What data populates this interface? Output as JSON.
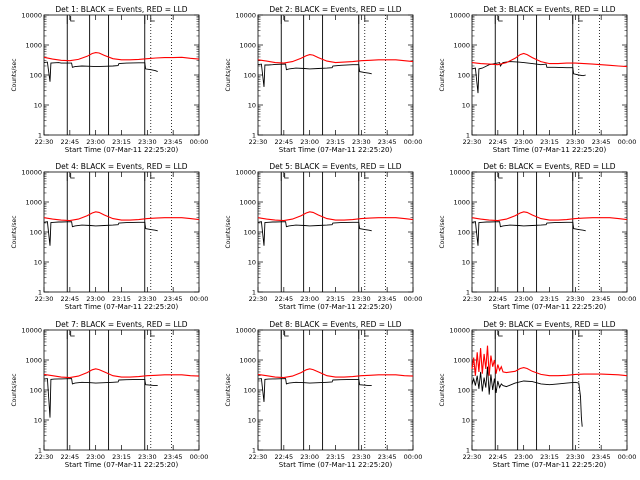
{
  "figure": {
    "xlabel": "Start Time (07-Mar-11 22:25:20)",
    "ylabel": "Counts/sec",
    "x_tick_labels": [
      "22:30",
      "22:45",
      "23:00",
      "23:15",
      "23:30",
      "23:45",
      "00:00"
    ],
    "y_tick_labels": [
      "1",
      "10",
      "100",
      "1000",
      "10000"
    ]
  },
  "chart_data": [
    {
      "type": "line",
      "title": "Det 1: BLACK = Events, RED = LLD",
      "x_unit": "minutes after 22:30",
      "y_scale": "log",
      "ylim": [
        1,
        10000
      ],
      "xlim": [
        0,
        90
      ],
      "series": [
        {
          "name": "Events",
          "color": "#000000",
          "x": [
            0,
            2,
            3.5,
            4,
            6,
            8.5,
            10,
            16,
            16.5,
            18,
            22,
            27,
            30,
            35,
            40,
            43,
            43.5,
            48,
            55,
            58.5,
            59,
            62,
            64.5,
            66
          ],
          "y": [
            260,
            270,
            60,
            250,
            255,
            260,
            250,
            250,
            180,
            190,
            200,
            195,
            190,
            195,
            200,
            205,
            240,
            250,
            255,
            255,
            160,
            150,
            140,
            130
          ]
        },
        {
          "name": "LLD",
          "color": "#ff0000",
          "x": [
            0,
            5,
            10,
            15,
            20,
            25,
            28,
            30,
            32,
            35,
            40,
            45,
            50,
            55,
            60,
            65,
            70,
            75,
            80,
            85,
            90
          ],
          "y": [
            390,
            340,
            310,
            300,
            330,
            420,
            520,
            560,
            540,
            450,
            350,
            320,
            320,
            330,
            350,
            370,
            380,
            380,
            390,
            360,
            340
          ]
        }
      ]
    },
    {
      "type": "line",
      "title": "Det 2: BLACK = Events, RED = LLD",
      "x_unit": "minutes after 22:30",
      "y_scale": "log",
      "ylim": [
        1,
        10000
      ],
      "xlim": [
        0,
        90
      ],
      "series": [
        {
          "name": "Events",
          "color": "#000000",
          "x": [
            0,
            2,
            3.5,
            4,
            6,
            8.5,
            10,
            16,
            16.5,
            18,
            22,
            27,
            30,
            35,
            40,
            43,
            43.5,
            48,
            55,
            58.5,
            59,
            62,
            64.5,
            66
          ],
          "y": [
            220,
            230,
            40,
            215,
            215,
            220,
            225,
            230,
            150,
            160,
            170,
            165,
            160,
            165,
            170,
            175,
            200,
            210,
            220,
            220,
            130,
            120,
            115,
            110
          ]
        },
        {
          "name": "LLD",
          "color": "#ff0000",
          "x": [
            0,
            5,
            10,
            15,
            20,
            25,
            28,
            30,
            32,
            35,
            40,
            45,
            50,
            55,
            60,
            65,
            70,
            75,
            80,
            85,
            90
          ],
          "y": [
            320,
            290,
            260,
            250,
            280,
            360,
            440,
            480,
            460,
            380,
            290,
            260,
            270,
            280,
            300,
            310,
            320,
            320,
            320,
            300,
            280
          ]
        }
      ]
    },
    {
      "type": "line",
      "title": "Det 3: BLACK = Events, RED = LLD",
      "x_unit": "minutes after 22:30",
      "y_scale": "log",
      "ylim": [
        1,
        10000
      ],
      "xlim": [
        0,
        90
      ],
      "series": [
        {
          "name": "Events",
          "color": "#000000",
          "x": [
            0,
            2,
            3.5,
            4,
            6,
            8.5,
            10,
            16,
            16.5,
            18,
            22,
            27,
            30,
            35,
            40,
            43,
            43.5,
            48,
            55,
            58.5,
            59,
            62,
            64.5,
            66
          ],
          "y": [
            160,
            170,
            25,
            160,
            170,
            200,
            220,
            260,
            200,
            260,
            280,
            270,
            260,
            240,
            220,
            230,
            180,
            180,
            175,
            175,
            110,
            100,
            95,
            100
          ]
        },
        {
          "name": "LLD",
          "color": "#ff0000",
          "x": [
            0,
            5,
            10,
            15,
            20,
            25,
            28,
            30,
            32,
            35,
            40,
            45,
            50,
            55,
            60,
            65,
            70,
            75,
            80,
            85,
            90
          ],
          "y": [
            260,
            240,
            230,
            220,
            260,
            360,
            480,
            520,
            480,
            380,
            280,
            240,
            240,
            250,
            250,
            240,
            230,
            220,
            210,
            200,
            190
          ]
        }
      ]
    },
    {
      "type": "line",
      "title": "Det 4: BLACK = Events, RED = LLD",
      "x_unit": "minutes after 22:30",
      "y_scale": "log",
      "ylim": [
        1,
        10000
      ],
      "xlim": [
        0,
        90
      ],
      "series": [
        {
          "name": "Events",
          "color": "#000000",
          "x": [
            0,
            2,
            3.5,
            4,
            6,
            8.5,
            10,
            16,
            16.5,
            18,
            22,
            27,
            30,
            35,
            40,
            43,
            43.5,
            48,
            55,
            58.5,
            59,
            62,
            64.5,
            66
          ],
          "y": [
            210,
            220,
            35,
            205,
            210,
            215,
            215,
            220,
            150,
            160,
            170,
            165,
            160,
            165,
            170,
            175,
            200,
            205,
            210,
            210,
            130,
            120,
            115,
            110
          ]
        },
        {
          "name": "LLD",
          "color": "#ff0000",
          "x": [
            0,
            5,
            10,
            15,
            20,
            25,
            28,
            30,
            32,
            35,
            40,
            45,
            50,
            55,
            60,
            65,
            70,
            75,
            80,
            85,
            90
          ],
          "y": [
            300,
            270,
            250,
            240,
            270,
            350,
            430,
            470,
            450,
            370,
            280,
            250,
            250,
            260,
            280,
            290,
            300,
            300,
            300,
            280,
            260
          ]
        }
      ]
    },
    {
      "type": "line",
      "title": "Det 5: BLACK = Events, RED = LLD",
      "x_unit": "minutes after 22:30",
      "y_scale": "log",
      "ylim": [
        1,
        10000
      ],
      "xlim": [
        0,
        90
      ],
      "series": [
        {
          "name": "Events",
          "color": "#000000",
          "x": [
            0,
            2,
            3.5,
            4,
            6,
            8.5,
            10,
            16,
            16.5,
            18,
            22,
            27,
            30,
            35,
            40,
            43,
            43.5,
            48,
            55,
            58.5,
            59,
            62,
            64.5,
            66
          ],
          "y": [
            210,
            220,
            35,
            205,
            210,
            215,
            215,
            220,
            150,
            160,
            170,
            165,
            160,
            165,
            170,
            175,
            200,
            205,
            210,
            210,
            130,
            120,
            115,
            110
          ]
        },
        {
          "name": "LLD",
          "color": "#ff0000",
          "x": [
            0,
            5,
            10,
            15,
            20,
            25,
            28,
            30,
            32,
            35,
            40,
            45,
            50,
            55,
            60,
            65,
            70,
            75,
            80,
            85,
            90
          ],
          "y": [
            300,
            270,
            250,
            240,
            270,
            350,
            430,
            470,
            450,
            370,
            280,
            250,
            250,
            260,
            280,
            290,
            300,
            300,
            300,
            280,
            260
          ]
        }
      ]
    },
    {
      "type": "line",
      "title": "Det 6: BLACK = Events, RED = LLD",
      "x_unit": "minutes after 22:30",
      "y_scale": "log",
      "ylim": [
        1,
        10000
      ],
      "xlim": [
        0,
        90
      ],
      "series": [
        {
          "name": "Events",
          "color": "#000000",
          "x": [
            0,
            2,
            3.5,
            4,
            6,
            8.5,
            10,
            16,
            16.5,
            18,
            22,
            27,
            30,
            35,
            40,
            43,
            43.5,
            48,
            55,
            58.5,
            59,
            62,
            64.5,
            66
          ],
          "y": [
            210,
            220,
            35,
            205,
            210,
            215,
            215,
            220,
            150,
            160,
            170,
            165,
            160,
            165,
            170,
            175,
            200,
            205,
            210,
            210,
            130,
            120,
            115,
            110
          ]
        },
        {
          "name": "LLD",
          "color": "#ff0000",
          "x": [
            0,
            5,
            10,
            15,
            20,
            25,
            28,
            30,
            32,
            35,
            40,
            45,
            50,
            55,
            60,
            65,
            70,
            75,
            80,
            85,
            90
          ],
          "y": [
            300,
            270,
            250,
            240,
            270,
            350,
            430,
            470,
            450,
            370,
            280,
            250,
            250,
            260,
            280,
            290,
            300,
            300,
            300,
            280,
            260
          ]
        }
      ]
    },
    {
      "type": "line",
      "title": "Det 7: BLACK = Events, RED = LLD",
      "x_unit": "minutes after 22:30",
      "y_scale": "log",
      "ylim": [
        1,
        10000
      ],
      "xlim": [
        0,
        90
      ],
      "series": [
        {
          "name": "Events",
          "color": "#000000",
          "x": [
            0,
            2,
            3.5,
            4,
            6,
            8.5,
            10,
            16,
            16.5,
            18,
            22,
            27,
            30,
            35,
            40,
            43,
            43.5,
            48,
            55,
            58.5,
            59,
            62,
            64.5,
            66
          ],
          "y": [
            230,
            240,
            12,
            225,
            230,
            235,
            235,
            240,
            160,
            170,
            180,
            175,
            170,
            175,
            180,
            185,
            215,
            220,
            225,
            225,
            150,
            145,
            140,
            140
          ]
        },
        {
          "name": "LLD",
          "color": "#ff0000",
          "x": [
            0,
            5,
            10,
            15,
            20,
            25,
            28,
            30,
            32,
            35,
            40,
            45,
            50,
            55,
            60,
            65,
            70,
            75,
            80,
            85,
            90
          ],
          "y": [
            330,
            300,
            270,
            260,
            290,
            380,
            470,
            510,
            480,
            400,
            300,
            270,
            270,
            280,
            300,
            310,
            320,
            320,
            320,
            300,
            290
          ]
        }
      ]
    },
    {
      "type": "line",
      "title": "Det 8: BLACK = Events, RED = LLD",
      "x_unit": "minutes after 22:30",
      "y_scale": "log",
      "ylim": [
        1,
        10000
      ],
      "xlim": [
        0,
        90
      ],
      "series": [
        {
          "name": "Events",
          "color": "#000000",
          "x": [
            0,
            2,
            3.5,
            4,
            6,
            8.5,
            10,
            16,
            16.5,
            18,
            22,
            27,
            30,
            35,
            40,
            43,
            43.5,
            48,
            55,
            58.5,
            59,
            62,
            64.5,
            66
          ],
          "y": [
            230,
            240,
            40,
            225,
            230,
            235,
            235,
            240,
            160,
            170,
            180,
            175,
            170,
            175,
            180,
            185,
            215,
            220,
            225,
            225,
            150,
            145,
            140,
            140
          ]
        },
        {
          "name": "LLD",
          "color": "#ff0000",
          "x": [
            0,
            5,
            10,
            15,
            20,
            25,
            28,
            30,
            32,
            35,
            40,
            45,
            50,
            55,
            60,
            65,
            70,
            75,
            80,
            85,
            90
          ],
          "y": [
            330,
            300,
            270,
            260,
            290,
            380,
            470,
            510,
            480,
            400,
            300,
            270,
            270,
            280,
            300,
            310,
            320,
            320,
            320,
            300,
            290
          ]
        }
      ]
    },
    {
      "type": "line",
      "title": "Det 9: BLACK = Events, RED = LLD",
      "x_unit": "minutes after 22:30",
      "y_scale": "log",
      "ylim": [
        1,
        10000
      ],
      "xlim": [
        0,
        90
      ],
      "series": [
        {
          "name": "Events",
          "color": "#000000",
          "x": [
            0,
            1,
            2,
            3,
            4,
            5,
            6,
            7,
            8,
            9,
            10,
            11,
            12,
            13,
            14,
            15,
            16,
            17,
            18,
            20,
            25,
            30,
            35,
            40,
            45,
            50,
            55,
            60,
            62,
            63,
            63.5,
            64
          ],
          "y": [
            150,
            240,
            140,
            300,
            110,
            400,
            90,
            260,
            120,
            600,
            70,
            330,
            100,
            240,
            80,
            200,
            120,
            160,
            140,
            130,
            170,
            200,
            190,
            160,
            150,
            160,
            170,
            180,
            170,
            60,
            12,
            6
          ]
        },
        {
          "name": "LLD",
          "color": "#ff0000",
          "x": [
            0,
            1,
            2,
            3,
            4,
            5,
            6,
            7,
            8,
            9,
            10,
            11,
            12,
            13,
            14,
            15,
            16,
            17,
            18,
            20,
            25,
            28,
            30,
            32,
            35,
            40,
            45,
            50,
            55,
            60,
            65,
            70,
            75,
            80,
            85,
            90
          ],
          "y": [
            500,
            1200,
            300,
            1800,
            400,
            2500,
            350,
            1600,
            500,
            3000,
            300,
            1400,
            600,
            1000,
            350,
            700,
            450,
            600,
            400,
            380,
            420,
            520,
            560,
            520,
            420,
            330,
            300,
            300,
            310,
            330,
            340,
            340,
            340,
            330,
            320,
            300
          ]
        }
      ]
    }
  ]
}
